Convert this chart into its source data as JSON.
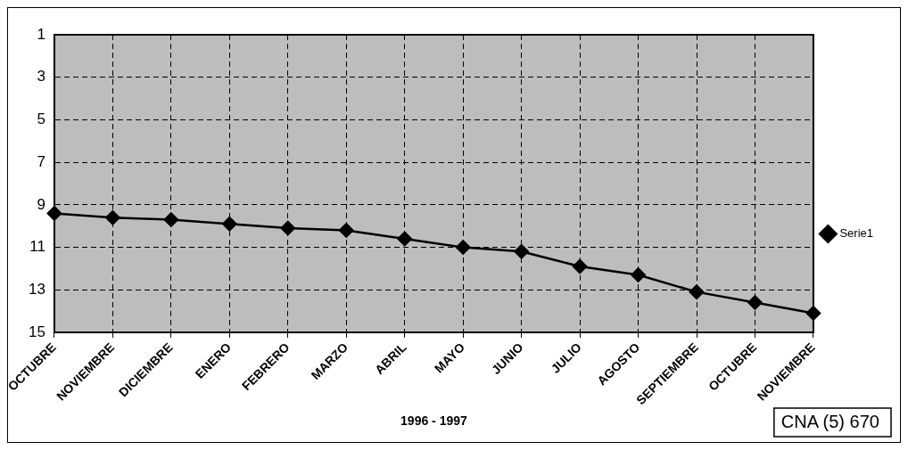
{
  "chart_data": {
    "type": "line",
    "xlabel": "1996 - 1997",
    "categories": [
      "OCTUBRE",
      "NOVIEMBRE",
      "DICIEMBRE",
      "ENERO",
      "FEBRERO",
      "MARZO",
      "ABRIL",
      "MAYO",
      "JUNIO",
      "JULIO",
      "AGOSTO",
      "SEPTIEMBRE",
      "OCTUBRE",
      "NOVIEMBRE"
    ],
    "series": [
      {
        "name": "Serie1",
        "color": "#000000",
        "values": [
          9.4,
          9.6,
          9.7,
          9.9,
          10.1,
          10.2,
          10.6,
          11.0,
          11.2,
          11.9,
          12.3,
          13.1,
          13.6,
          14.1
        ]
      }
    ],
    "ylim": [
      15,
      1
    ],
    "yticks": [
      1,
      3,
      5,
      7,
      9,
      11,
      13,
      15
    ],
    "grid": true,
    "legend": "right",
    "marker": "diamond",
    "line_style": "solid",
    "annotations": [
      "CNA (5) 670"
    ]
  }
}
